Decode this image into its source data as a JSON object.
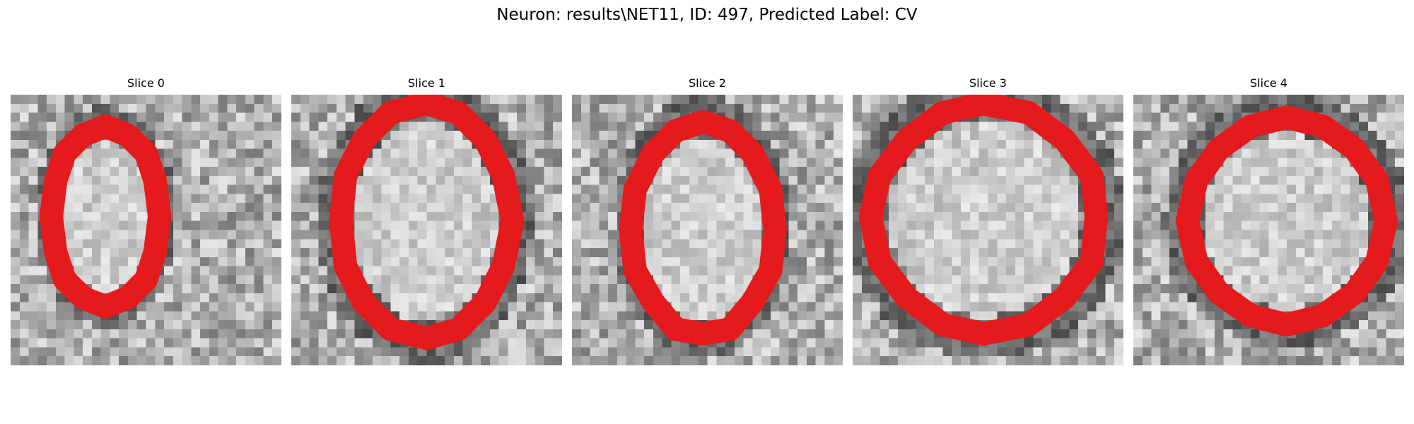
{
  "figure": {
    "title": "Neuron: results\\NET11, ID: 497, Predicted Label: CV"
  },
  "colors": {
    "contour": "#e41a1c",
    "background": "#ffffff"
  },
  "panels": [
    {
      "title": "Slice 0"
    },
    {
      "title": "Slice 1"
    },
    {
      "title": "Slice 2"
    },
    {
      "title": "Slice 3"
    },
    {
      "title": "Slice 4"
    }
  ]
}
